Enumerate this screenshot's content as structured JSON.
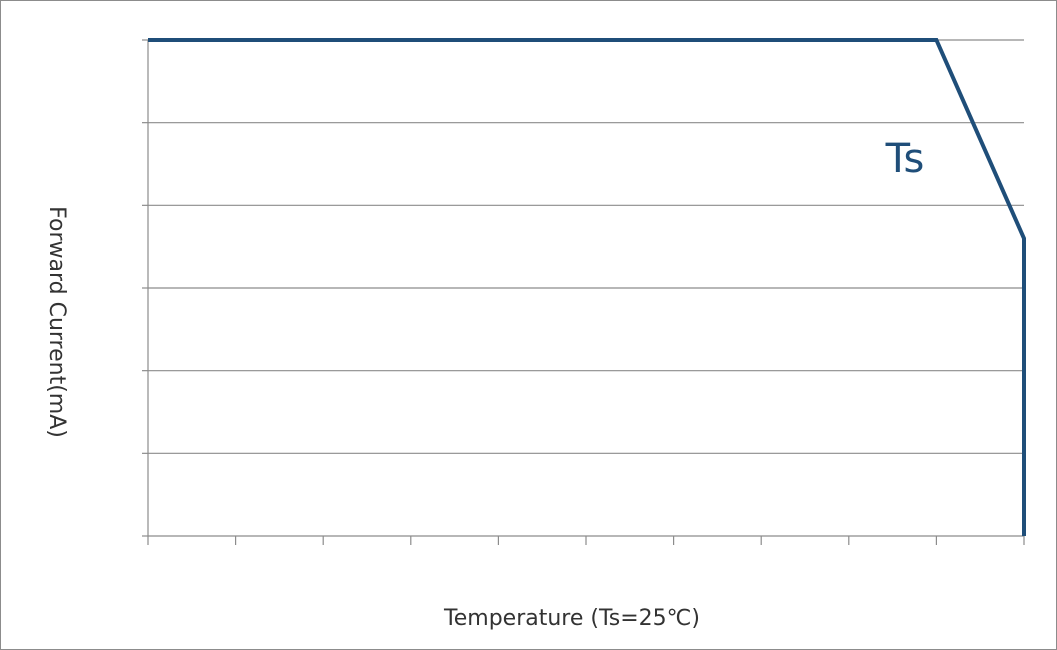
{
  "chart_data": {
    "type": "line",
    "title": "",
    "xlabel": "Temperature (Ts=25℃)",
    "ylabel": "Forward Current(mA)",
    "annotation": "Ts",
    "x_tick_count": 11,
    "y_gridlines": 6,
    "grid": true,
    "series": [
      {
        "name": "",
        "color": "#1f4e79",
        "x": [
          0,
          9,
          10,
          10
        ],
        "y": [
          6,
          6,
          3.6,
          0
        ]
      }
    ],
    "xlim": [
      0,
      10
    ],
    "ylim": [
      0,
      6
    ]
  }
}
